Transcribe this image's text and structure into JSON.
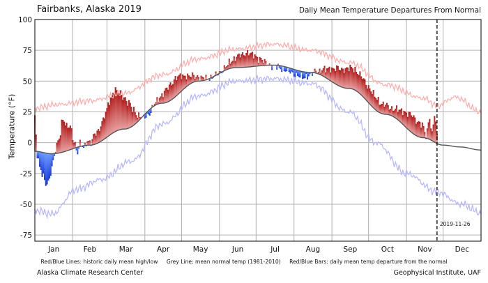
{
  "header": {
    "title": "Fairbanks, Alaska 2019",
    "subtitle": "Daily Mean Temperature Departures From Normal"
  },
  "legend": {
    "redblue_lines": "Red/Blue Lines: historic daily mean high/low",
    "grey_line": "Grey Line: mean normal temp (1981-2010)",
    "bars": "Red/Blue Bars: daily mean temp departure from the normal"
  },
  "footer": {
    "left": "Alaska Climate Research Center",
    "right": "Geophysical Institute, UAF"
  },
  "colors": {
    "warm": "#b01a1a",
    "warm_light": "#e8a0a0",
    "cold": "#1a3ad6",
    "cold_light": "#6f9cff",
    "hist_high": "#ffb0b0",
    "hist_low": "#b9b9ff",
    "normal": "#555555",
    "grid": "#b0b0b0"
  },
  "chart_data": {
    "type": "bar",
    "title": "Fairbanks, Alaska 2019",
    "subtitle": "Daily Mean Temperature Departures From Normal",
    "ylabel": "Temperature (°F)",
    "ylim": [
      -80,
      100
    ],
    "xlim_day": [
      1,
      366
    ],
    "yticks": [
      -75,
      -50,
      -25,
      0,
      25,
      50,
      75,
      100
    ],
    "months": [
      "Jan",
      "Feb",
      "Mar",
      "Apr",
      "May",
      "Jun",
      "Jul",
      "Aug",
      "Sep",
      "Oct",
      "Nov",
      "Dec"
    ],
    "grid": true,
    "marker": {
      "day": 330,
      "label": "2019-11-26"
    },
    "normal_anchors": {
      "day": [
        1,
        15,
        46,
        74,
        105,
        135,
        166,
        196,
        227,
        258,
        288,
        319,
        335,
        349,
        366
      ],
      "temp": [
        -7,
        -9,
        -2,
        11,
        32,
        50,
        61,
        63,
        57,
        44,
        23,
        4,
        -2,
        -3.5,
        -6
      ]
    },
    "hist_high_anchors": {
      "day": [
        1,
        20,
        46,
        74,
        105,
        135,
        166,
        196,
        227,
        258,
        288,
        319,
        330,
        345,
        366
      ],
      "temp": [
        28,
        31,
        34,
        40,
        55,
        68,
        76,
        80,
        75,
        65,
        47,
        36,
        30,
        37,
        25
      ]
    },
    "hist_low_anchors": {
      "day": [
        1,
        15,
        35,
        55,
        80,
        105,
        135,
        166,
        196,
        227,
        258,
        280,
        305,
        330,
        350,
        366
      ],
      "temp": [
        -55,
        -58,
        -38,
        -30,
        -15,
        15,
        38,
        50,
        52,
        48,
        25,
        0,
        -25,
        -40,
        -50,
        -57
      ]
    },
    "bars_days": [
      1,
      331
    ],
    "departure_anchors": {
      "day": [
        1,
        3,
        5,
        8,
        10,
        12,
        14,
        16,
        18,
        21,
        24,
        27,
        30,
        33,
        36,
        38,
        41,
        44,
        47,
        50,
        53,
        56,
        59,
        62,
        66,
        70,
        74,
        78,
        82,
        86,
        90,
        95,
        100,
        104,
        108,
        112,
        116,
        120,
        124,
        128,
        134,
        138,
        142,
        146,
        150,
        154,
        158,
        162,
        166,
        170,
        175,
        180,
        185,
        190,
        196,
        202,
        208,
        214,
        220,
        226,
        232,
        238,
        244,
        250,
        256,
        262,
        268,
        274,
        280,
        286,
        292,
        298,
        304,
        310,
        315,
        318,
        321,
        324,
        326,
        328,
        331
      ],
      "value": [
        28,
        -2,
        -12,
        -20,
        -26,
        -24,
        -15,
        -6,
        3,
        12,
        28,
        20,
        18,
        6,
        -4,
        2,
        -2,
        4,
        2,
        8,
        10,
        15,
        20,
        28,
        34,
        30,
        26,
        20,
        12,
        4,
        -2,
        -3,
        2,
        6,
        10,
        13,
        15,
        13,
        10,
        6,
        4,
        2,
        1,
        0,
        0,
        1,
        3,
        6,
        9,
        10,
        12,
        9,
        6,
        2,
        -1,
        -2,
        -3,
        -4,
        -5,
        -2,
        2,
        6,
        11,
        14,
        16,
        17,
        15,
        13,
        10,
        8,
        6,
        8,
        12,
        14,
        12,
        10,
        2,
        18,
        5,
        22,
        0
      ]
    }
  }
}
